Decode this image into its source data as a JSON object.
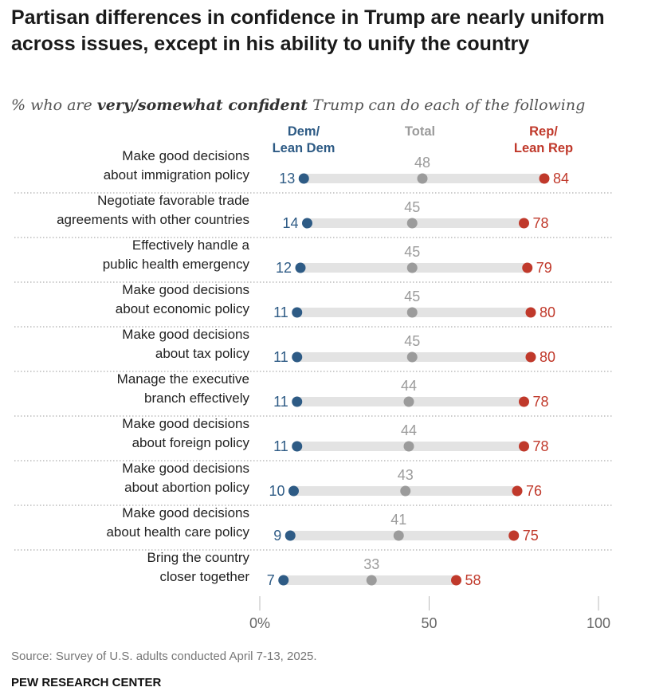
{
  "header": {
    "title": "Partisan differences in confidence in Trump are nearly uniform across issues, except in his ability to unify the country",
    "subtitle_pre": "% who are ",
    "subtitle_bold": "very/somewhat confident",
    "subtitle_post": " Trump can do each of the following"
  },
  "footer": {
    "source": "Source: Survey of U.S. adults conducted April 7-13, 2025.",
    "org": "PEW RESEARCH CENTER"
  },
  "chart_data": {
    "type": "dot",
    "title": "Partisan differences in confidence in Trump are nearly uniform across issues, except in his ability to unify the country",
    "xlim": [
      0,
      100
    ],
    "xticks": [
      "0%",
      "50",
      "100"
    ],
    "xtick_values": [
      0,
      50,
      100
    ],
    "grid": false,
    "categories": [
      [
        "Make good decisions",
        "about immigration policy"
      ],
      [
        "Negotiate favorable trade",
        "agreements with other countries"
      ],
      [
        "Effectively handle a",
        "public health emergency"
      ],
      [
        "Make good decisions",
        "about economic policy"
      ],
      [
        "Make good decisions",
        "about tax policy"
      ],
      [
        "Manage the executive",
        "branch effectively"
      ],
      [
        "Make good decisions",
        "about foreign policy"
      ],
      [
        "Make good decisions",
        "about abortion policy"
      ],
      [
        "Make good decisions",
        "about health care policy"
      ],
      [
        "Bring the country",
        "closer together"
      ]
    ],
    "series": [
      {
        "name": "Dem/\nLean Dem",
        "color": "#2e5b85",
        "values": [
          13,
          14,
          12,
          11,
          11,
          11,
          11,
          10,
          9,
          7
        ]
      },
      {
        "name": "Total",
        "color": "#9b9b9b",
        "values": [
          48,
          45,
          45,
          45,
          45,
          44,
          44,
          43,
          41,
          33
        ]
      },
      {
        "name": "Rep/\nLean Rep",
        "color": "#c0392b",
        "values": [
          84,
          78,
          79,
          80,
          80,
          78,
          78,
          76,
          75,
          58
        ]
      }
    ]
  }
}
